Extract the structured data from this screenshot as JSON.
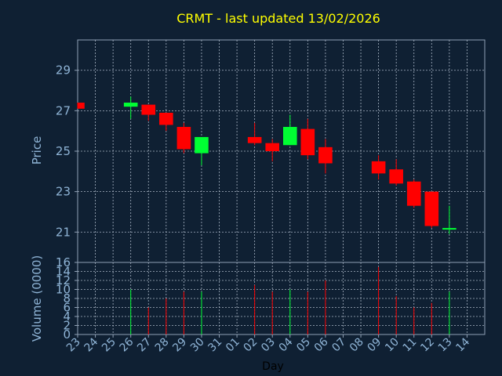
{
  "chart_data": {
    "type": "candlestick",
    "title": "CRMT - last updated 13/02/2026",
    "xlabel": "Day",
    "price_panel": {
      "ylabel": "Price",
      "ylim": [
        19.5,
        30.5
      ],
      "yticks": [
        "21",
        "23",
        "25",
        "27",
        "29"
      ],
      "grid": true
    },
    "volume_panel": {
      "ylabel": "Volume (0000)",
      "ylim": [
        0,
        16
      ],
      "yticks": [
        "0",
        "2",
        "4",
        "6",
        "8",
        "10",
        "12",
        "14",
        "16"
      ],
      "grid": true
    },
    "x_tick_labels": [
      "23",
      "24",
      "25",
      "26",
      "27",
      "28",
      "29",
      "30",
      "31",
      "01",
      "02",
      "03",
      "04",
      "05",
      "06",
      "07",
      "08",
      "09",
      "10",
      "11",
      "12",
      "13",
      "14"
    ],
    "colors": {
      "up": "#00ff33",
      "down": "#ff0000",
      "background": "#0f2033",
      "title": "#ffff00",
      "axis_text": "#8fb4d6"
    },
    "candles": [
      {
        "day": "23",
        "open": 27.4,
        "high": 27.4,
        "low": 27.1,
        "close": 27.1,
        "volume": 0
      },
      {
        "day": "26",
        "open": 27.2,
        "high": 27.7,
        "low": 26.6,
        "close": 27.4,
        "volume": 10
      },
      {
        "day": "27",
        "open": 27.3,
        "high": 27.3,
        "low": 26.5,
        "close": 26.8,
        "volume": 6
      },
      {
        "day": "28",
        "open": 26.9,
        "high": 26.9,
        "low": 26.0,
        "close": 26.3,
        "volume": 8
      },
      {
        "day": "29",
        "open": 26.2,
        "high": 26.4,
        "low": 24.9,
        "close": 25.1,
        "volume": 9.5
      },
      {
        "day": "30",
        "open": 24.9,
        "high": 25.7,
        "low": 24.3,
        "close": 25.7,
        "volume": 9.5
      },
      {
        "day": "02",
        "open": 25.7,
        "high": 26.4,
        "low": 25.3,
        "close": 25.4,
        "volume": 11
      },
      {
        "day": "03",
        "open": 25.4,
        "high": 25.6,
        "low": 24.5,
        "close": 25.0,
        "volume": 9.5
      },
      {
        "day": "04",
        "open": 25.3,
        "high": 26.8,
        "low": 25.3,
        "close": 26.2,
        "volume": 10
      },
      {
        "day": "05",
        "open": 26.1,
        "high": 26.6,
        "low": 24.6,
        "close": 24.8,
        "volume": 9.5
      },
      {
        "day": "06",
        "open": 25.2,
        "high": 25.6,
        "low": 23.9,
        "close": 24.4,
        "volume": 12
      },
      {
        "day": "09",
        "open": 24.5,
        "high": 24.8,
        "low": 23.6,
        "close": 23.9,
        "volume": 15
      },
      {
        "day": "10",
        "open": 24.1,
        "high": 24.6,
        "low": 23.3,
        "close": 23.4,
        "volume": 8.5
      },
      {
        "day": "11",
        "open": 23.5,
        "high": 23.6,
        "low": 22.2,
        "close": 22.3,
        "volume": 6
      },
      {
        "day": "12",
        "open": 23.0,
        "high": 23.0,
        "low": 21.2,
        "close": 21.3,
        "volume": 7
      },
      {
        "day": "13",
        "open": 21.2,
        "high": 22.3,
        "low": 20.9,
        "close": 21.2,
        "volume": 9.5
      }
    ]
  }
}
